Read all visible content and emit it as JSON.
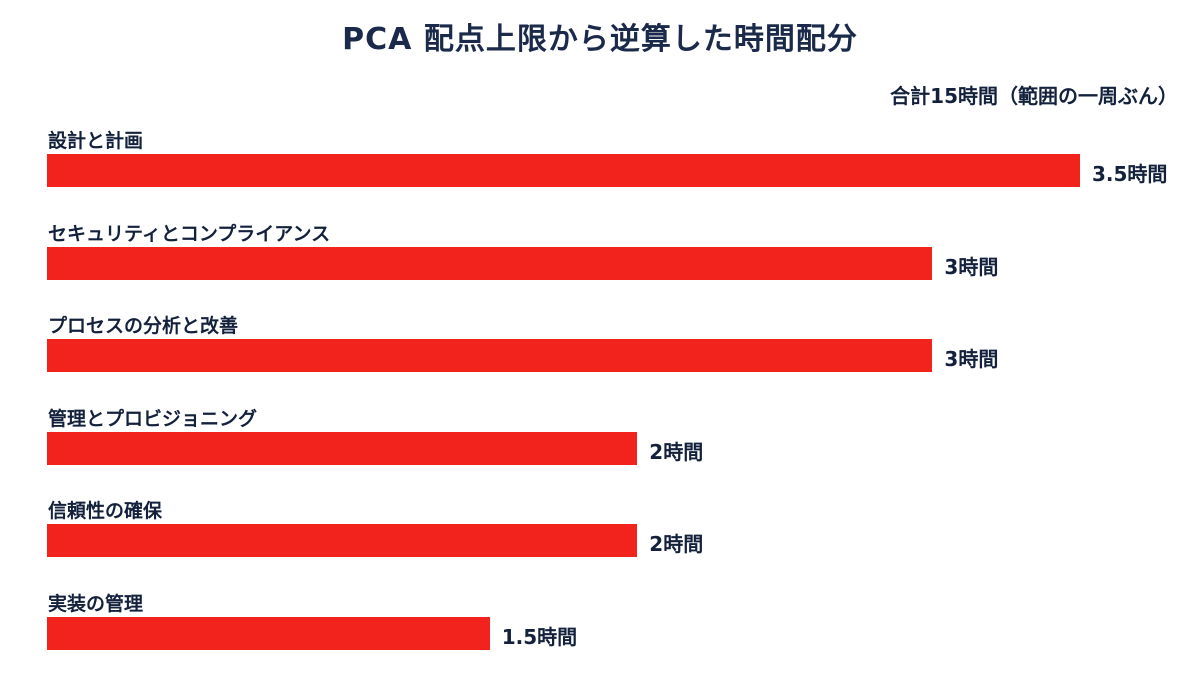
{
  "chart_data": {
    "type": "bar",
    "orientation": "horizontal",
    "title": "PCA 配点上限から逆算した時間配分",
    "subtitle": "合計15時間（範囲の一周ぶん）",
    "categories": [
      "設計と計画",
      "セキュリティとコンプライアンス",
      "プロセスの分析と改善",
      "管理とプロビジョニング",
      "信頼性の確保",
      "実装の管理"
    ],
    "values": [
      3.5,
      3,
      3,
      2,
      2,
      1.5
    ],
    "value_labels": [
      "3.5時間",
      "3時間",
      "3時間",
      "2時間",
      "2時間",
      "1.5時間"
    ],
    "unit": "時間",
    "xlim": [
      0,
      3.5
    ],
    "grid": false,
    "bar_color": "#f2231d"
  }
}
